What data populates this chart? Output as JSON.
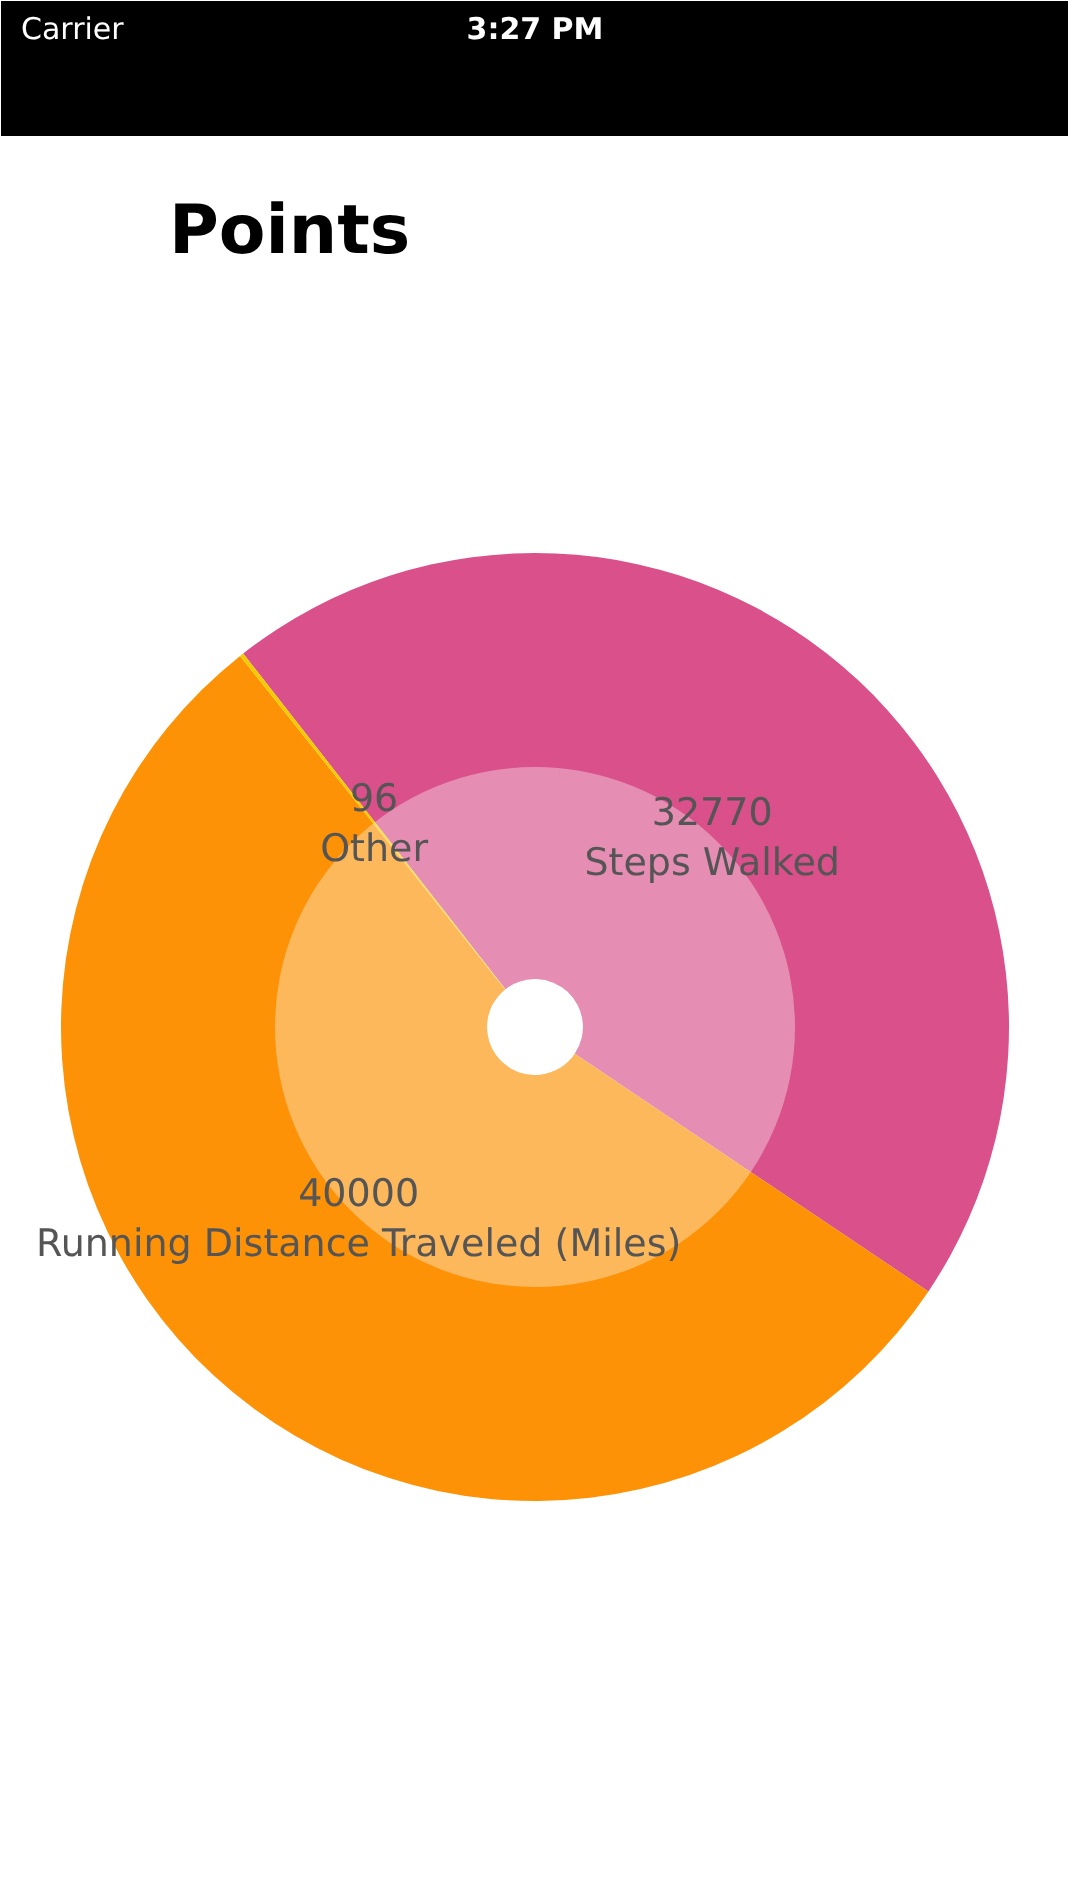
{
  "chart_data": {
    "type": "donut",
    "title": "Points",
    "categories": [
      "Steps Walked",
      "Running Distance Traveled (Miles)",
      "Other"
    ],
    "values": [
      32770,
      40000,
      96
    ],
    "colors": [
      "#d9508a",
      "#fe9206",
      "#f2cc00"
    ],
    "data_labels": true,
    "annotations": [
      "Carrier",
      "3:27 PM"
    ]
  }
}
